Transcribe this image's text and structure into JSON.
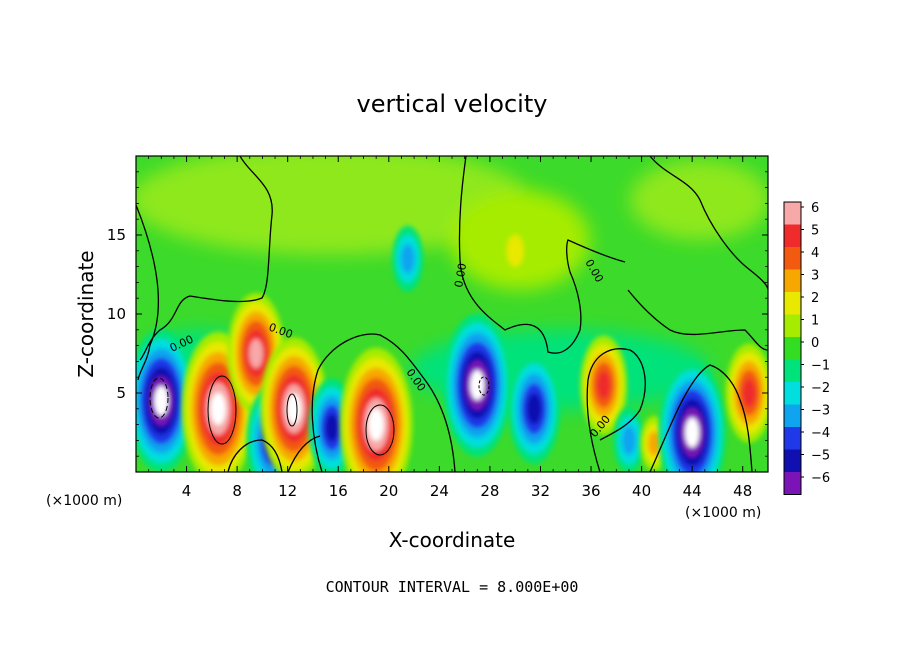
{
  "chart_data": {
    "type": "heatmap",
    "title": "vertical velocity",
    "xlabel": "X-coordinate",
    "ylabel": "Z-coordinate",
    "x_unit_left": "(×1000 m)",
    "x_unit_right": "(×1000 m)",
    "xlim": [
      0,
      50
    ],
    "ylim": [
      0,
      20
    ],
    "x_ticks": [
      4,
      8,
      12,
      16,
      20,
      24,
      28,
      32,
      36,
      40,
      44,
      48
    ],
    "y_ticks": [
      5,
      10,
      15
    ],
    "footer": "CONTOUR INTERVAL = 8.000E+00",
    "contour_labels": [
      "0.00",
      "0.00",
      "0.00",
      "0.00",
      "0.00",
      "0.00"
    ],
    "colorbar": {
      "labels": [
        "6",
        "5",
        "4",
        "3",
        "2",
        "1",
        "0",
        "−1",
        "−2",
        "−3",
        "−4",
        "−5",
        "−6"
      ],
      "levels": [
        6,
        5,
        4,
        3,
        2,
        1,
        0,
        -1,
        -2,
        -3,
        -4,
        -5,
        -6
      ],
      "colors": [
        "#f7a8a8",
        "#ef2b2b",
        "#f25a10",
        "#f7a800",
        "#e8e800",
        "#a6ec00",
        "#33dd22",
        "#00e27a",
        "#00dede",
        "#0fa4f0",
        "#1f38e8",
        "#1010b0",
        "#7a14b6"
      ]
    },
    "features": [
      {
        "x": 2.0,
        "z": 4.5,
        "value": -6.5
      },
      {
        "x": 6.5,
        "z": 4.0,
        "value": 7.0
      },
      {
        "x": 9.5,
        "z": 7.5,
        "value": 5.5
      },
      {
        "x": 10.8,
        "z": 2.0,
        "value": -5.0
      },
      {
        "x": 12.5,
        "z": 4.0,
        "value": 6.5
      },
      {
        "x": 15.5,
        "z": 2.8,
        "value": -4.5
      },
      {
        "x": 19.0,
        "z": 3.0,
        "value": 7.0
      },
      {
        "x": 21.5,
        "z": 13.5,
        "value": -3.0
      },
      {
        "x": 27.0,
        "z": 5.5,
        "value": -6.5
      },
      {
        "x": 31.5,
        "z": 4.0,
        "value": -5.0
      },
      {
        "x": 37.0,
        "z": 5.5,
        "value": 4.5
      },
      {
        "x": 39.0,
        "z": 2.0,
        "value": -3.0
      },
      {
        "x": 41.0,
        "z": 1.8,
        "value": 2.5
      },
      {
        "x": 44.0,
        "z": 2.5,
        "value": -6.5
      },
      {
        "x": 48.5,
        "z": 5.0,
        "value": 4.5
      },
      {
        "x": 30.0,
        "z": 14.0,
        "value": 1.5
      }
    ]
  }
}
